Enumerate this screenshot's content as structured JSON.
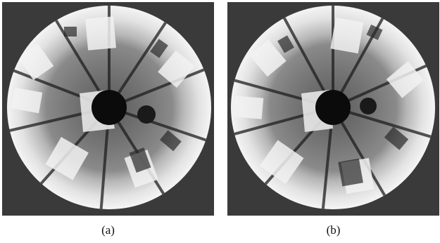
{
  "panels": [
    {
      "caption": "(a)",
      "description_icon": "fisheye-omnidirectional-image"
    },
    {
      "caption": "(b)",
      "description_icon": "fisheye-omnidirectional-image"
    }
  ],
  "colors": {
    "frame_background": "#3a3a3a",
    "center_hole": "#0b0b0b",
    "floor": "#7d7d7d",
    "walls": "#d8d8d8"
  }
}
